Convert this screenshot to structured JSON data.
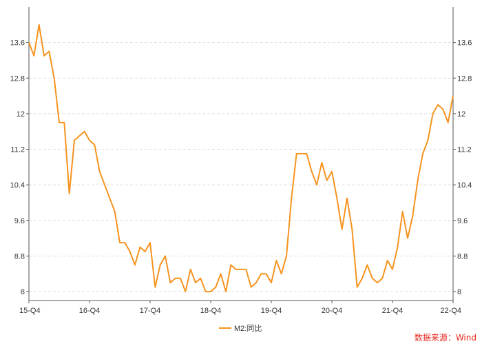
{
  "chart_data": {
    "type": "line",
    "x": [
      "15-Q4",
      "",
      "",
      "16-Q1",
      "",
      "",
      "16-Q2",
      "",
      "",
      "16-Q3",
      "",
      "",
      "16-Q4",
      "",
      "",
      "17-Q1",
      "",
      "",
      "17-Q2",
      "",
      "",
      "17-Q3",
      "",
      "",
      "17-Q4",
      "",
      "",
      "18-Q1",
      "",
      "",
      "18-Q2",
      "",
      "",
      "18-Q3",
      "",
      "",
      "18-Q4",
      "",
      "",
      "19-Q1",
      "",
      "",
      "19-Q2",
      "",
      "",
      "19-Q3",
      "",
      "",
      "19-Q4",
      "",
      "",
      "20-Q1",
      "",
      "",
      "20-Q2",
      "",
      "",
      "20-Q3",
      "",
      "",
      "20-Q4",
      "",
      "",
      "21-Q1",
      "",
      "",
      "21-Q2",
      "",
      "",
      "21-Q3",
      "",
      "",
      "21-Q4",
      "",
      "",
      "22-Q1",
      "",
      "",
      "22-Q2",
      "",
      "",
      "22-Q3",
      "",
      "",
      "22-Q4"
    ],
    "x_tick_labels": [
      "15-Q4",
      "16-Q4",
      "17-Q4",
      "18-Q4",
      "19-Q4",
      "20-Q4",
      "21-Q4",
      "22-Q4"
    ],
    "x_tick_indices": [
      0,
      12,
      24,
      36,
      48,
      60,
      72,
      84
    ],
    "series": [
      {
        "name": "M2:同比",
        "color": "#f7931e",
        "values": [
          13.6,
          13.3,
          14.0,
          13.3,
          13.4,
          12.8,
          11.8,
          11.8,
          10.2,
          11.4,
          11.5,
          11.6,
          11.4,
          11.3,
          10.7,
          10.4,
          10.1,
          9.8,
          9.1,
          9.1,
          8.9,
          8.6,
          9.0,
          8.9,
          9.1,
          8.1,
          8.6,
          8.8,
          8.2,
          8.3,
          8.3,
          8.0,
          8.5,
          8.2,
          8.3,
          8.0,
          8.0,
          8.1,
          8.4,
          8.0,
          8.6,
          8.5,
          8.5,
          8.5,
          8.1,
          8.2,
          8.4,
          8.4,
          8.2,
          8.7,
          8.4,
          8.8,
          10.1,
          11.1,
          11.1,
          11.1,
          10.7,
          10.4,
          10.9,
          10.5,
          10.7,
          10.1,
          9.4,
          10.1,
          9.4,
          8.1,
          8.3,
          8.6,
          8.3,
          8.2,
          8.3,
          8.7,
          8.5,
          9.0,
          9.8,
          9.2,
          9.7,
          10.5,
          11.1,
          11.4,
          12.0,
          12.2,
          12.1,
          11.8,
          12.4
        ]
      }
    ],
    "y_ticks": [
      8,
      8.8,
      9.6,
      10.4,
      11.2,
      12,
      12.8,
      13.6
    ],
    "y_tick_labels": [
      "8",
      "8.8",
      "9.6",
      "10.4",
      "11.2",
      "12",
      "12.8",
      "13.6"
    ],
    "ylim": [
      7.8,
      14.4
    ],
    "grid": true,
    "legend": "bottom-center",
    "title": "",
    "xlabel": "",
    "ylabel": ""
  },
  "source_label": "数据来源：Wind"
}
